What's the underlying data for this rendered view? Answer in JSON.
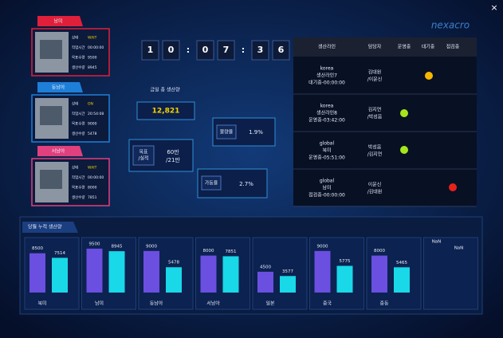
{
  "header": {
    "logo": "nexacro",
    "close": "×"
  },
  "cards": [
    {
      "title": "남미",
      "color": "#e0203a",
      "fields": [
        {
          "label": "상태",
          "value": "WAIT"
        },
        {
          "label": "작업시간",
          "value": "00:00:00"
        },
        {
          "label": "목표수량",
          "value": "9500"
        },
        {
          "label": "생산수량",
          "value": "8945"
        }
      ]
    },
    {
      "title": "동남아",
      "color": "#1e7fd8",
      "fields": [
        {
          "label": "상태",
          "value": "ON"
        },
        {
          "label": "작업시간",
          "value": "20:54:08"
        },
        {
          "label": "목표수량",
          "value": "9000"
        },
        {
          "label": "생산수량",
          "value": "5478"
        }
      ]
    },
    {
      "title": "서남아",
      "color": "#e0407e",
      "fields": [
        {
          "label": "상태",
          "value": "WAIT"
        },
        {
          "label": "작업시간",
          "value": "00:00:00"
        },
        {
          "label": "목표수량",
          "value": "8000"
        },
        {
          "label": "생산수량",
          "value": "7851"
        }
      ]
    }
  ],
  "clock": [
    "1",
    "0",
    ":",
    "0",
    "7",
    ":",
    "3",
    "6"
  ],
  "summary": {
    "total_label": "금일 총 생산량",
    "total": "12,821",
    "target_label": [
      "목표",
      "/실적"
    ],
    "target_value": [
      "60만",
      "/21만"
    ],
    "defect_label": "불량율",
    "defect_value": "1.9%",
    "uptime_label": "가동율",
    "uptime_value": "2.7%"
  },
  "table": {
    "headers": [
      "생산라인",
      "담당자",
      "운영중",
      "대기중",
      "점검중"
    ],
    "rows": [
      {
        "line": [
          "korea",
          "생산라인7",
          "대기중-00:00:00"
        ],
        "staff": [
          "김대원",
          "/이윤신"
        ]
      },
      {
        "line": [
          "korea",
          "생산라인8",
          "운영중-03:42:00"
        ],
        "staff": [
          "김지연",
          "/박성음"
        ]
      },
      {
        "line": [
          "global",
          "북미",
          "운영중-05:51:00"
        ],
        "staff": [
          "박성음",
          "/김지연"
        ]
      },
      {
        "line": [
          "global",
          "남미",
          "점검중-00:00:00"
        ],
        "staff": [
          "이윤신",
          "/김대원"
        ]
      }
    ]
  },
  "chart_data": {
    "type": "bar",
    "title": "당월 누적 생산량",
    "categories": [
      "북미",
      "남미",
      "동남아",
      "서남아",
      "일본",
      "중국",
      "중동",
      null
    ],
    "series": [
      {
        "color": "#6a4fe0",
        "values": [
          8500,
          9500,
          9000,
          8000,
          4500,
          9000,
          8000,
          null
        ],
        "value_labels": [
          "8500",
          "9500",
          "9000",
          "8000",
          "4500",
          "9000",
          "8000",
          "NaN"
        ]
      },
      {
        "color": "#19d8e8",
        "values": [
          7514,
          8945,
          5478,
          7851,
          3577,
          5775,
          5465,
          null
        ],
        "value_labels": [
          "7514",
          "8945",
          "5478",
          "7851",
          "3577",
          "5775",
          "5465",
          "NaN"
        ]
      }
    ],
    "ylim": [
      0,
      10000
    ]
  }
}
